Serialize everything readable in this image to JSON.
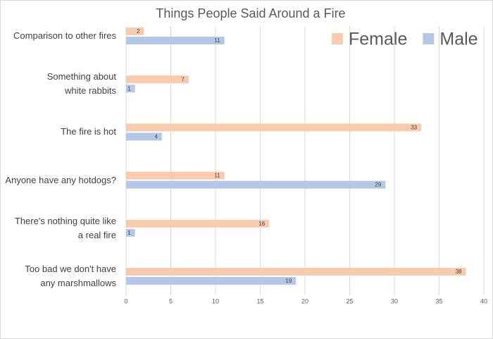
{
  "chart_data": {
    "type": "bar",
    "orientation": "horizontal",
    "title": "Things People Said Around a Fire",
    "categories": [
      "Comparison to other fires",
      "Something about white rabbits",
      "The fire is hot",
      "Anyone have any hotdogs?",
      "There's nothing quite like a real fire",
      "Too bad we don't have any marshmallows"
    ],
    "series": [
      {
        "name": "Female",
        "color": "#f8cbad",
        "values": [
          2,
          7,
          33,
          11,
          16,
          38
        ]
      },
      {
        "name": "Male",
        "color": "#b4c7e7",
        "values": [
          11,
          1,
          4,
          29,
          1,
          19
        ]
      }
    ],
    "xlim": [
      0,
      40
    ],
    "xticks": [
      0,
      5,
      10,
      15,
      20,
      25,
      30,
      35,
      40
    ],
    "grid": true,
    "legend": "top-right"
  }
}
